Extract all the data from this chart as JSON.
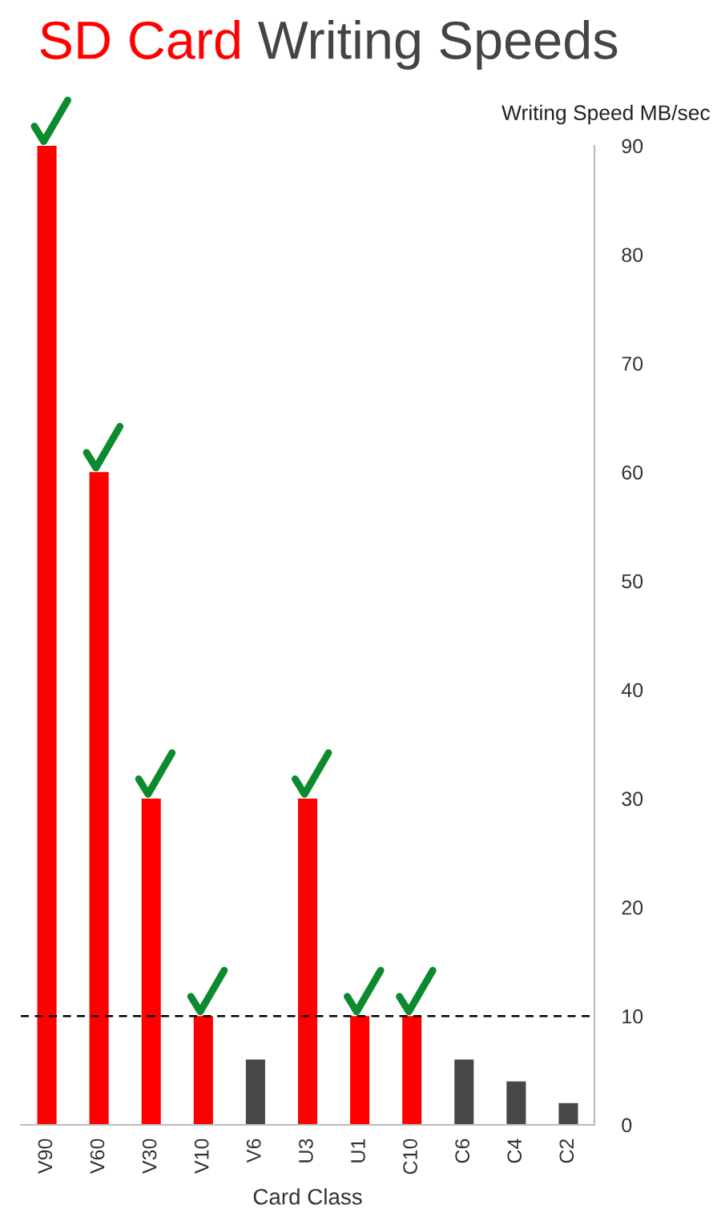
{
  "chart_data": {
    "type": "bar",
    "title": "SD Card Writing Speeds",
    "xlabel": "Card Class",
    "ylabel": "Writing Speed MB/sec",
    "categories": [
      "V90",
      "V60",
      "V30",
      "V10",
      "V6",
      "U3",
      "U1",
      "C10",
      "C6",
      "C4",
      "C2"
    ],
    "values": [
      90,
      60,
      30,
      10,
      6,
      30,
      10,
      10,
      6,
      4,
      2
    ],
    "colors": [
      "#ff0000",
      "#ff0000",
      "#ff0000",
      "#ff0000",
      "#474747",
      "#ff0000",
      "#ff0000",
      "#ff0000",
      "#474747",
      "#474747",
      "#474747"
    ],
    "ylim": [
      0,
      90
    ],
    "yticks": [
      0,
      10,
      20,
      30,
      40,
      50,
      60,
      70,
      80,
      90
    ],
    "ref_lines": [
      {
        "axis": "y",
        "value": 10,
        "color": "#000000",
        "line_style": "dashed"
      }
    ],
    "grid": false,
    "legend": false
  }
}
